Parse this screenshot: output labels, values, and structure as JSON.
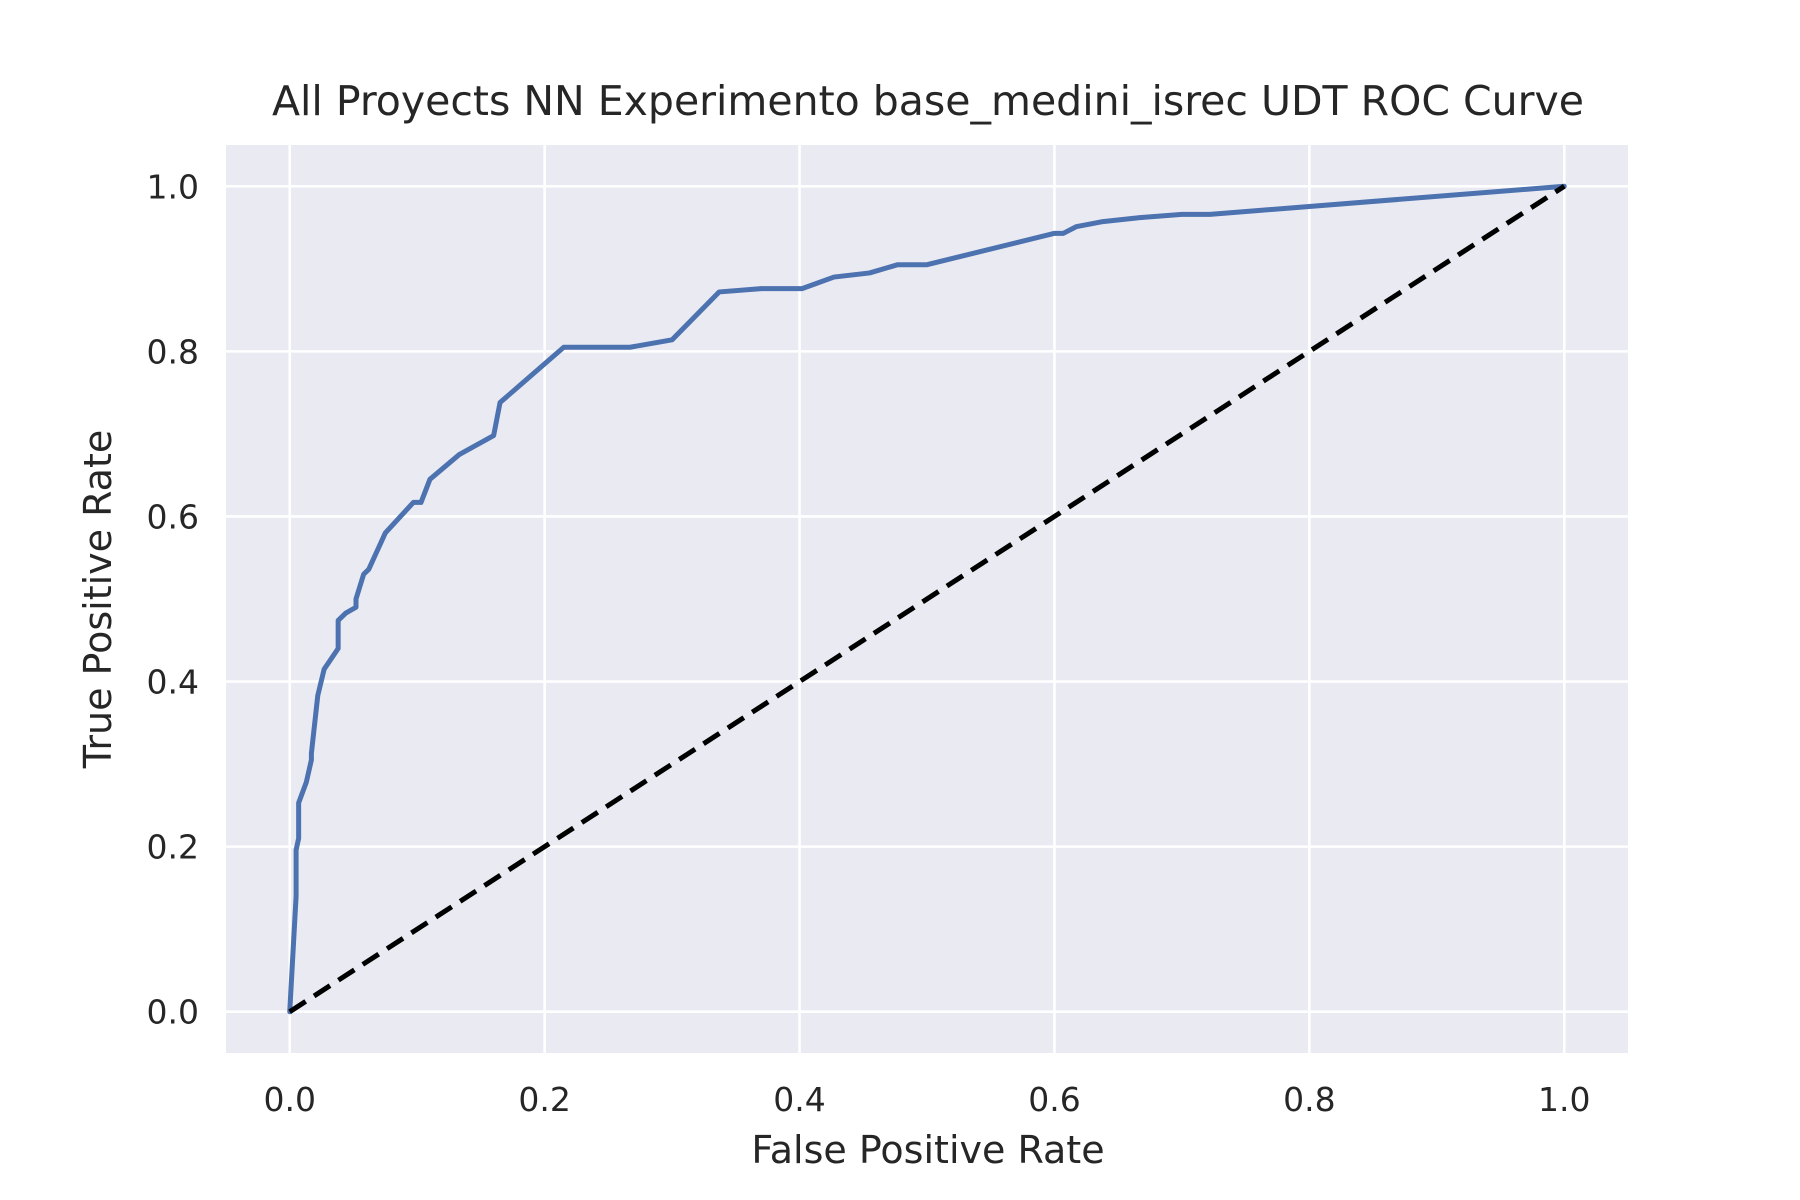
{
  "chart_data": {
    "type": "line",
    "title": "All Proyects NN Experimento base_medini_isrec UDT ROC Curve",
    "xlabel": "False Positive Rate",
    "ylabel": "True Positive Rate",
    "xlim": [
      -0.05,
      1.05
    ],
    "ylim": [
      -0.05,
      1.05
    ],
    "xticks": [
      0.0,
      0.2,
      0.4,
      0.6,
      0.8,
      1.0
    ],
    "yticks": [
      0.0,
      0.2,
      0.4,
      0.6,
      0.8,
      1.0
    ],
    "xtick_labels": [
      "0.0",
      "0.2",
      "0.4",
      "0.6",
      "0.8",
      "1.0"
    ],
    "ytick_labels": [
      "0.0",
      "0.2",
      "0.4",
      "0.6",
      "0.8",
      "1.0"
    ],
    "grid": true,
    "background_color": "#eaeaf2",
    "grid_color": "#ffffff",
    "series": [
      {
        "color": "#4c72b0",
        "style": "solid",
        "x": [
          0.0,
          0.005,
          0.005,
          0.007,
          0.007,
          0.013,
          0.017,
          0.017,
          0.022,
          0.027,
          0.038,
          0.038,
          0.044,
          0.052,
          0.052,
          0.058,
          0.062,
          0.075,
          0.097,
          0.103,
          0.11,
          0.133,
          0.16,
          0.165,
          0.215,
          0.267,
          0.3,
          0.337,
          0.37,
          0.402,
          0.427,
          0.455,
          0.477,
          0.5,
          0.6,
          0.607,
          0.617,
          0.637,
          0.667,
          0.7,
          0.722,
          1.0
        ],
        "y": [
          0.0,
          0.14,
          0.196,
          0.21,
          0.253,
          0.278,
          0.305,
          0.313,
          0.383,
          0.415,
          0.44,
          0.474,
          0.483,
          0.49,
          0.5,
          0.53,
          0.536,
          0.58,
          0.617,
          0.617,
          0.645,
          0.675,
          0.698,
          0.738,
          0.805,
          0.805,
          0.814,
          0.872,
          0.876,
          0.876,
          0.89,
          0.895,
          0.905,
          0.905,
          0.943,
          0.943,
          0.951,
          0.957,
          0.962,
          0.966,
          0.966,
          1.0
        ]
      },
      {
        "color": "#000000",
        "style": "dashed",
        "x": [
          0.0,
          1.0
        ],
        "y": [
          0.0,
          1.0
        ]
      }
    ]
  }
}
